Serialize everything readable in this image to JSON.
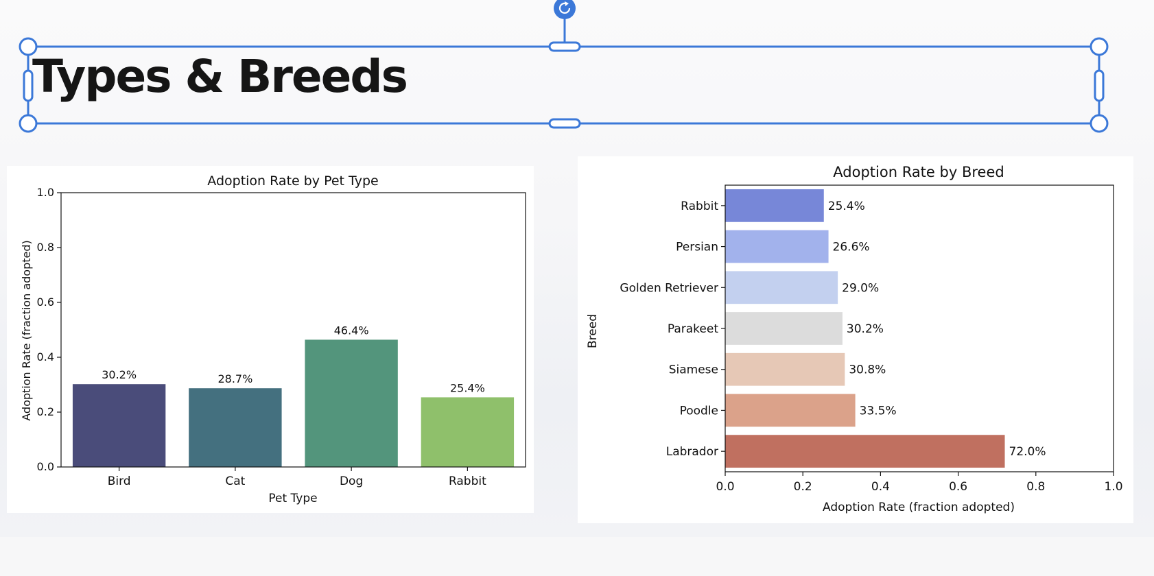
{
  "slide": {
    "title": "Types & Breeds"
  },
  "colors": {
    "selection": "#3b78d8",
    "bar_left": [
      "#4a4c7a",
      "#44707f",
      "#53957c",
      "#8fc06b"
    ],
    "bar_right": [
      "#7787d8",
      "#a2b2ec",
      "#c3d0ef",
      "#dcdcdc",
      "#e6c8b6",
      "#dba28a",
      "#c07060"
    ]
  },
  "chart_data": [
    {
      "type": "bar",
      "title": "Adoption Rate by Pet Type",
      "xlabel": "Pet Type",
      "ylabel": "Adoption Rate (fraction adopted)",
      "categories": [
        "Bird",
        "Cat",
        "Dog",
        "Rabbit"
      ],
      "values": [
        0.302,
        0.287,
        0.464,
        0.254
      ],
      "data_labels": [
        "30.2%",
        "28.7%",
        "46.4%",
        "25.4%"
      ],
      "ylim": [
        0,
        1.0
      ],
      "yticks": [
        "0.0",
        "0.2",
        "0.4",
        "0.6",
        "0.8",
        "1.0"
      ],
      "grid": false
    },
    {
      "type": "bar",
      "orientation": "horizontal",
      "title": "Adoption Rate by Breed",
      "xlabel": "Adoption Rate (fraction adopted)",
      "ylabel": "Breed",
      "categories": [
        "Rabbit",
        "Persian",
        "Golden Retriever",
        "Parakeet",
        "Siamese",
        "Poodle",
        "Labrador"
      ],
      "values": [
        0.254,
        0.266,
        0.29,
        0.302,
        0.308,
        0.335,
        0.72
      ],
      "data_labels": [
        "25.4%",
        "26.6%",
        "29.0%",
        "30.2%",
        "30.8%",
        "33.5%",
        "72.0%"
      ],
      "xlim": [
        0,
        1.0
      ],
      "xticks": [
        "0.0",
        "0.2",
        "0.4",
        "0.6",
        "0.8",
        "1.0"
      ],
      "grid": false
    }
  ]
}
